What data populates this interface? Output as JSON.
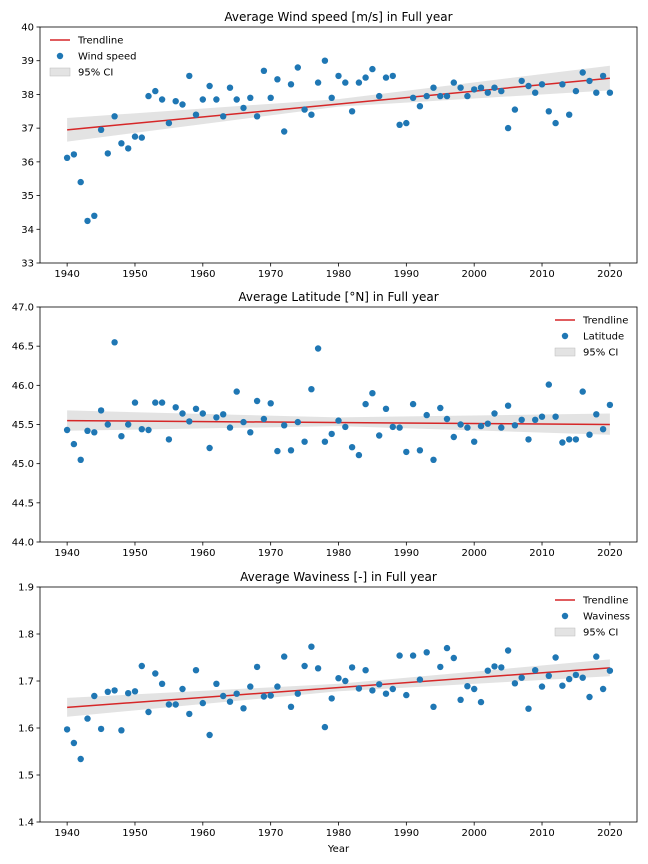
{
  "colors": {
    "points": "#1f77b4",
    "trend": "#d62728",
    "ci": "#cccccc"
  },
  "legend": {
    "trend_label": "Trendline",
    "ci_label": "95% CI"
  },
  "chart_data": [
    {
      "type": "scatter",
      "title": "Average Wind speed [m/s] in Full year",
      "series_label": "Wind speed",
      "legend_position": "top-left",
      "xlabel": "",
      "xlim": [
        1936,
        2024
      ],
      "ylim": [
        33,
        40
      ],
      "xticks": [
        1940,
        1950,
        1960,
        1970,
        1980,
        1990,
        2000,
        2010,
        2020
      ],
      "yticks": [
        33,
        34,
        35,
        36,
        37,
        38,
        39,
        40
      ],
      "ytick_labels": [
        "33",
        "34",
        "35",
        "36",
        "37",
        "38",
        "39",
        "40"
      ],
      "trend": {
        "x": [
          1940,
          2020
        ],
        "y": [
          36.95,
          38.48
        ]
      },
      "ci": {
        "x": [
          1940,
          1980,
          2020
        ],
        "lower": [
          36.6,
          37.64,
          38.12
        ],
        "upper": [
          37.3,
          37.86,
          38.85
        ]
      },
      "x": [
        1940,
        1941,
        1942,
        1943,
        1944,
        1945,
        1946,
        1947,
        1948,
        1949,
        1950,
        1951,
        1952,
        1953,
        1954,
        1955,
        1956,
        1957,
        1958,
        1959,
        1960,
        1961,
        1962,
        1963,
        1964,
        1965,
        1966,
        1967,
        1968,
        1969,
        1970,
        1971,
        1972,
        1973,
        1974,
        1975,
        1976,
        1977,
        1978,
        1979,
        1980,
        1981,
        1982,
        1983,
        1984,
        1985,
        1986,
        1987,
        1988,
        1989,
        1990,
        1991,
        1992,
        1993,
        1994,
        1995,
        1996,
        1997,
        1998,
        1999,
        2000,
        2001,
        2002,
        2003,
        2004,
        2005,
        2006,
        2007,
        2008,
        2009,
        2010,
        2011,
        2012,
        2013,
        2014,
        2015,
        2016,
        2017,
        2018,
        2019,
        2020
      ],
      "y": [
        36.12,
        36.22,
        35.4,
        34.25,
        34.4,
        36.95,
        36.25,
        37.35,
        36.55,
        36.4,
        36.75,
        36.72,
        37.95,
        38.1,
        37.85,
        37.15,
        37.8,
        37.7,
        38.55,
        37.4,
        37.85,
        38.25,
        37.85,
        37.35,
        38.2,
        37.85,
        37.6,
        37.9,
        37.35,
        38.7,
        37.9,
        38.45,
        36.9,
        38.3,
        38.8,
        37.55,
        37.4,
        38.35,
        39.0,
        37.9,
        38.55,
        38.35,
        37.5,
        38.35,
        38.5,
        38.75,
        37.95,
        38.5,
        38.55,
        37.1,
        37.15,
        37.9,
        37.65,
        37.95,
        38.2,
        37.95,
        37.95,
        38.35,
        38.2,
        37.95,
        38.15,
        38.2,
        38.05,
        38.2,
        38.1,
        37.0,
        37.55,
        38.4,
        38.25,
        38.05,
        38.3,
        37.5,
        37.15,
        38.3,
        37.4,
        38.1,
        38.65,
        38.4,
        38.05,
        38.55,
        38.05
      ]
    },
    {
      "type": "scatter",
      "title": "Average Latitude [°N] in Full year",
      "series_label": "Latitude",
      "legend_position": "top-right",
      "xlabel": "",
      "xlim": [
        1936,
        2024
      ],
      "ylim": [
        44.0,
        47.0
      ],
      "xticks": [
        1940,
        1950,
        1960,
        1970,
        1980,
        1990,
        2000,
        2010,
        2020
      ],
      "yticks": [
        44.0,
        44.5,
        45.0,
        45.5,
        46.0,
        46.5,
        47.0
      ],
      "ytick_labels": [
        "44.0",
        "44.5",
        "45.0",
        "45.5",
        "46.0",
        "46.5",
        "47.0"
      ],
      "trend": {
        "x": [
          1940,
          2020
        ],
        "y": [
          45.55,
          45.5
        ]
      },
      "ci": {
        "x": [
          1940,
          1980,
          2020
        ],
        "lower": [
          45.42,
          45.48,
          45.37
        ],
        "upper": [
          45.68,
          45.59,
          45.64
        ]
      },
      "x": [
        1940,
        1941,
        1942,
        1943,
        1944,
        1945,
        1946,
        1947,
        1948,
        1949,
        1950,
        1951,
        1952,
        1953,
        1954,
        1955,
        1956,
        1957,
        1958,
        1959,
        1960,
        1961,
        1962,
        1963,
        1964,
        1965,
        1966,
        1967,
        1968,
        1969,
        1970,
        1971,
        1972,
        1973,
        1974,
        1975,
        1976,
        1977,
        1978,
        1979,
        1980,
        1981,
        1982,
        1983,
        1984,
        1985,
        1986,
        1987,
        1988,
        1989,
        1990,
        1991,
        1992,
        1993,
        1994,
        1995,
        1996,
        1997,
        1998,
        1999,
        2000,
        2001,
        2002,
        2003,
        2004,
        2005,
        2006,
        2007,
        2008,
        2009,
        2010,
        2011,
        2012,
        2013,
        2014,
        2015,
        2016,
        2017,
        2018,
        2019,
        2020
      ],
      "y": [
        45.43,
        45.25,
        45.05,
        45.42,
        45.4,
        45.68,
        45.5,
        46.55,
        45.35,
        45.5,
        45.78,
        45.44,
        45.43,
        45.78,
        45.78,
        45.31,
        45.72,
        45.64,
        45.54,
        45.7,
        45.64,
        45.2,
        45.59,
        45.63,
        45.46,
        45.92,
        45.53,
        45.4,
        45.8,
        45.57,
        45.77,
        45.16,
        45.49,
        45.17,
        45.53,
        45.28,
        45.95,
        46.47,
        45.28,
        45.38,
        45.55,
        45.47,
        45.21,
        45.11,
        45.76,
        45.9,
        45.36,
        45.7,
        45.47,
        45.46,
        45.15,
        45.76,
        45.17,
        45.62,
        45.05,
        45.71,
        45.57,
        45.34,
        45.5,
        45.46,
        45.28,
        45.48,
        45.51,
        45.64,
        45.46,
        45.74,
        45.49,
        45.56,
        45.31,
        45.56,
        45.6,
        46.01,
        45.6,
        45.27,
        45.31,
        45.31,
        45.92,
        45.37,
        45.63,
        45.44,
        45.75
      ]
    },
    {
      "type": "scatter",
      "title": "Average Waviness [-] in Full year",
      "series_label": "Waviness",
      "legend_position": "top-right",
      "xlabel": "Year",
      "xlim": [
        1936,
        2024
      ],
      "ylim": [
        1.4,
        1.9
      ],
      "xticks": [
        1940,
        1950,
        1960,
        1970,
        1980,
        1990,
        2000,
        2010,
        2020
      ],
      "yticks": [
        1.4,
        1.5,
        1.6,
        1.7,
        1.8,
        1.9
      ],
      "ytick_labels": [
        "1.4",
        "1.5",
        "1.6",
        "1.7",
        "1.8",
        "1.9"
      ],
      "trend": {
        "x": [
          1940,
          2020
        ],
        "y": [
          1.644,
          1.728
        ]
      },
      "ci": {
        "x": [
          1940,
          1980,
          2020
        ],
        "lower": [
          1.624,
          1.678,
          1.71
        ],
        "upper": [
          1.664,
          1.694,
          1.746
        ]
      },
      "x": [
        1940,
        1941,
        1942,
        1943,
        1944,
        1945,
        1946,
        1947,
        1948,
        1949,
        1950,
        1951,
        1952,
        1953,
        1954,
        1955,
        1956,
        1957,
        1958,
        1959,
        1960,
        1961,
        1962,
        1963,
        1964,
        1965,
        1966,
        1967,
        1968,
        1969,
        1970,
        1971,
        1972,
        1973,
        1974,
        1975,
        1976,
        1977,
        1978,
        1979,
        1980,
        1981,
        1982,
        1983,
        1984,
        1985,
        1986,
        1987,
        1988,
        1989,
        1990,
        1991,
        1992,
        1993,
        1994,
        1995,
        1996,
        1997,
        1998,
        1999,
        2000,
        2001,
        2002,
        2003,
        2004,
        2005,
        2006,
        2007,
        2008,
        2009,
        2010,
        2011,
        2012,
        2013,
        2014,
        2015,
        2016,
        2017,
        2018,
        2019,
        2020
      ],
      "y": [
        1.597,
        1.568,
        1.534,
        1.62,
        1.668,
        1.598,
        1.677,
        1.68,
        1.595,
        1.674,
        1.678,
        1.732,
        1.634,
        1.716,
        1.694,
        1.65,
        1.65,
        1.683,
        1.63,
        1.723,
        1.653,
        1.585,
        1.694,
        1.668,
        1.656,
        1.673,
        1.642,
        1.688,
        1.73,
        1.667,
        1.669,
        1.688,
        1.752,
        1.645,
        1.673,
        1.732,
        1.773,
        1.727,
        1.602,
        1.663,
        1.706,
        1.7,
        1.729,
        1.684,
        1.723,
        1.68,
        1.693,
        1.673,
        1.683,
        1.754,
        1.67,
        1.754,
        1.703,
        1.761,
        1.645,
        1.73,
        1.77,
        1.749,
        1.66,
        1.689,
        1.683,
        1.655,
        1.722,
        1.731,
        1.729,
        1.765,
        1.695,
        1.707,
        1.641,
        1.723,
        1.688,
        1.711,
        1.75,
        1.69,
        1.704,
        1.713,
        1.707,
        1.666,
        1.752,
        1.683,
        1.722
      ]
    }
  ]
}
